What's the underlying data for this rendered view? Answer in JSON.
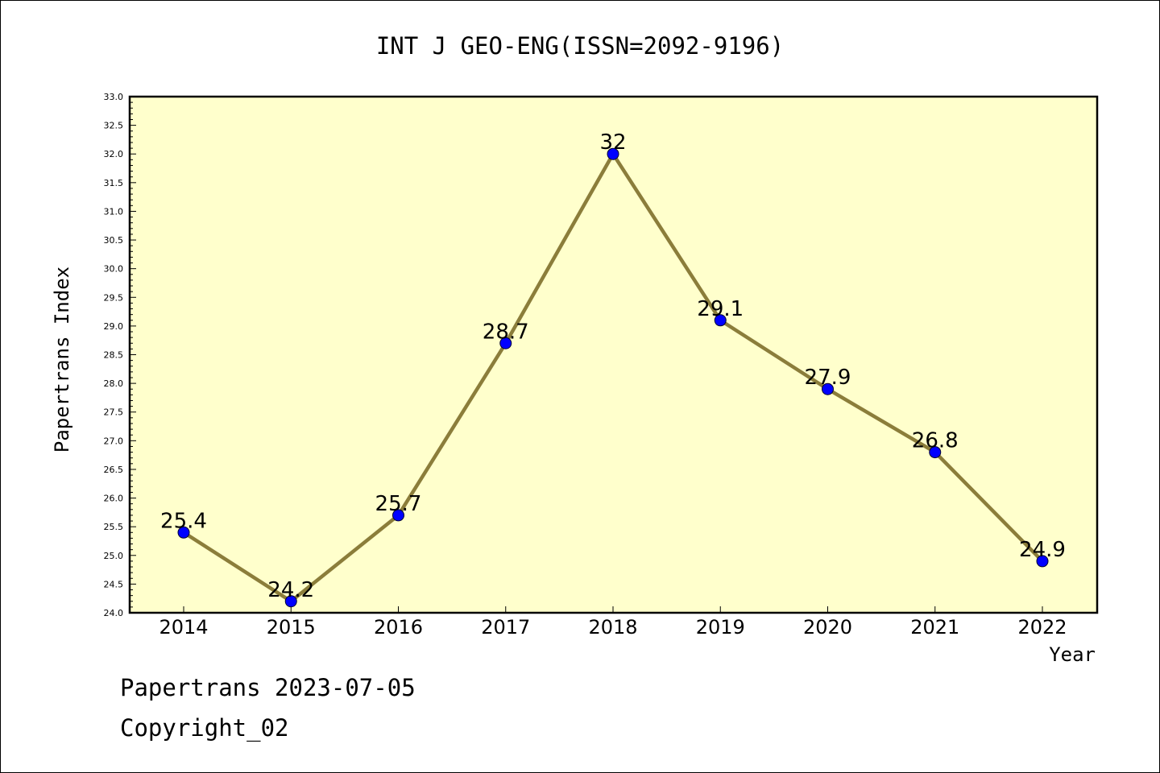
{
  "chart_data": {
    "type": "line",
    "title": "INT J GEO-ENG(ISSN=2092-9196)",
    "xlabel": "Year",
    "ylabel": "Papertrans Index",
    "categories": [
      "2014",
      "2015",
      "2016",
      "2017",
      "2018",
      "2019",
      "2020",
      "2021",
      "2022"
    ],
    "series": [
      {
        "values": [
          25.4,
          24.2,
          25.7,
          28.7,
          32,
          29.1,
          27.9,
          26.8,
          24.9
        ],
        "labels": [
          "25.4",
          "24.2",
          "25.7",
          "28.7",
          "32",
          "29.1",
          "27.9",
          "26.8",
          "24.9"
        ]
      }
    ],
    "ylim": [
      24.0,
      33.0
    ],
    "yticks": [
      "24.0",
      "24.5",
      "25.0",
      "25.5",
      "26.0",
      "26.5",
      "27.0",
      "27.5",
      "28.0",
      "28.5",
      "29.0",
      "29.5",
      "30.0",
      "30.5",
      "31.0",
      "31.5",
      "32.0",
      "32.5",
      "33.0"
    ],
    "grid": false,
    "colors": {
      "plot_background": "#ffffcc",
      "line": "#8b7d3a",
      "marker": "#0000ff"
    }
  },
  "footer": {
    "date_line": "Papertrans 2023-07-05",
    "copyright": "Copyright_02"
  }
}
